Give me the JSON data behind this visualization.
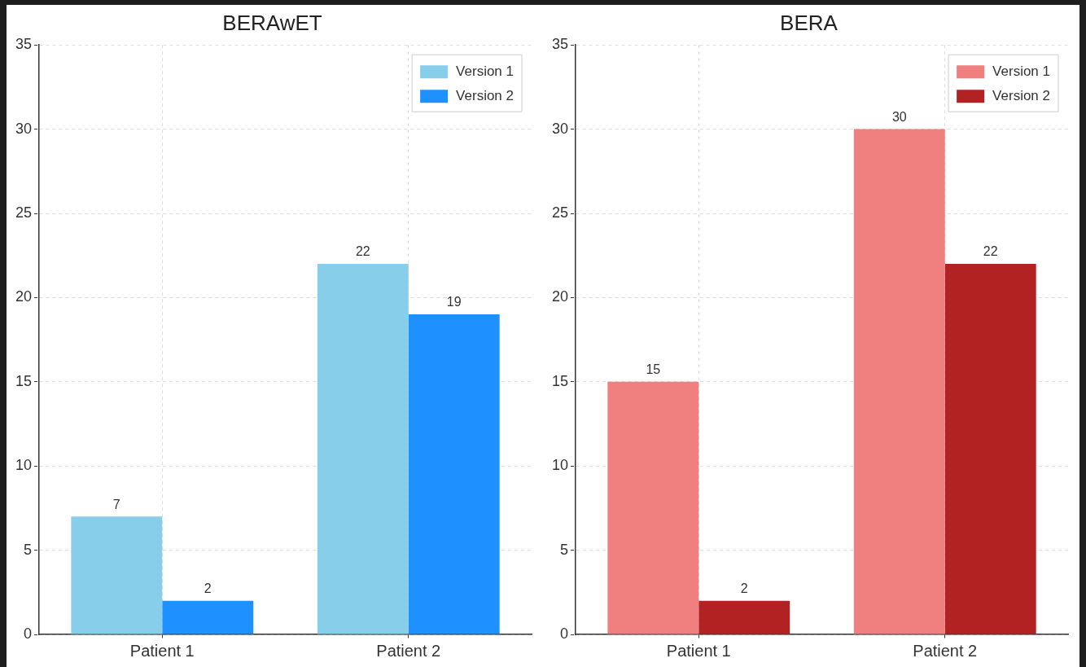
{
  "chart_data": [
    {
      "type": "bar",
      "title": "BERAwET",
      "categories": [
        "Patient 1",
        "Patient 2"
      ],
      "series": [
        {
          "name": "Version 1",
          "color": "#87ceeb",
          "values": [
            7,
            22
          ]
        },
        {
          "name": "Version 2",
          "color": "#1e90ff",
          "values": [
            2,
            19
          ]
        }
      ],
      "ylim": [
        0,
        35
      ],
      "yticks": [
        0,
        5,
        10,
        15,
        20,
        25,
        30,
        35
      ],
      "grid": true,
      "legend": "top right",
      "data_labels": true
    },
    {
      "type": "bar",
      "title": "BERA",
      "categories": [
        "Patient 1",
        "Patient 2"
      ],
      "series": [
        {
          "name": "Version 1",
          "color": "#f08080",
          "values": [
            15,
            30
          ]
        },
        {
          "name": "Version 2",
          "color": "#b22222",
          "values": [
            2,
            22
          ]
        }
      ],
      "ylim": [
        0,
        35
      ],
      "yticks": [
        0,
        5,
        10,
        15,
        20,
        25,
        30,
        35
      ],
      "grid": true,
      "legend": "top right",
      "data_labels": true
    }
  ]
}
